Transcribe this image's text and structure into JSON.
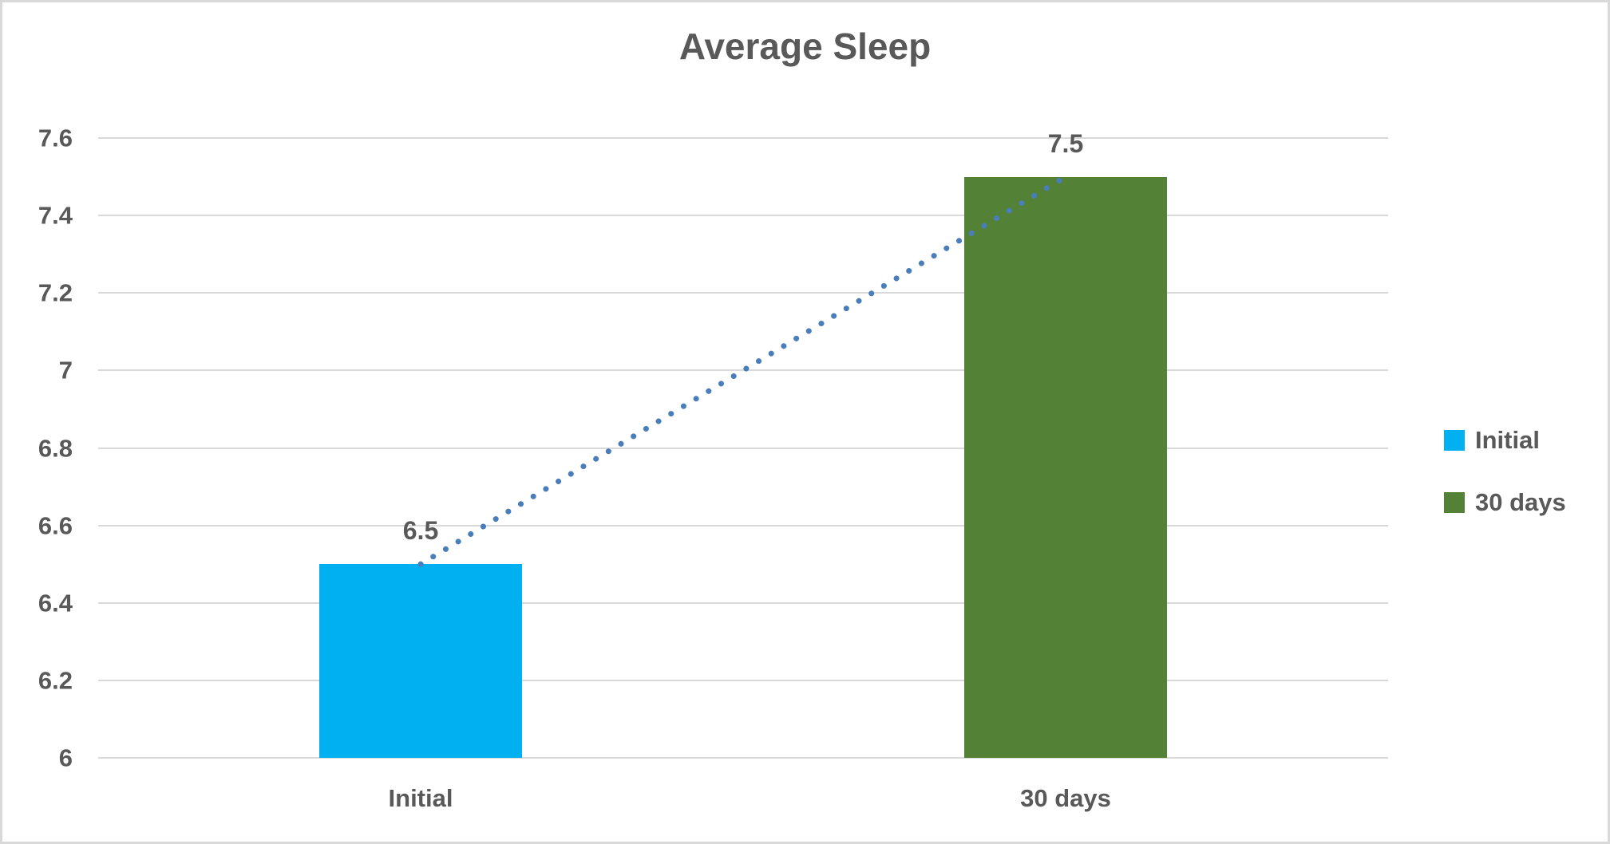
{
  "chart_data": {
    "type": "bar",
    "title": "Average Sleep",
    "categories": [
      "Initial",
      "30 days"
    ],
    "series": [
      {
        "name": "Initial",
        "value": 6.5,
        "color": "#00B0F0"
      },
      {
        "name": "30 days",
        "value": 7.5,
        "color": "#538135"
      }
    ],
    "data_labels": [
      "6.5",
      "7.5"
    ],
    "xlabel": "",
    "ylabel": "",
    "ylim": [
      6,
      7.6
    ],
    "ytick_labels": [
      "6",
      "6.2",
      "6.4",
      "6.6",
      "6.8",
      "7",
      "7.2",
      "7.4",
      "7.6"
    ],
    "grid": "horizontal",
    "legend_position": "right",
    "legend": [
      {
        "label": "Initial",
        "color": "#00B0F0"
      },
      {
        "label": "30 days",
        "color": "#538135"
      }
    ],
    "trendline": {
      "style": "dotted",
      "color": "#4A7EBB",
      "connects": [
        "Initial",
        "30 days"
      ],
      "values": [
        6.5,
        7.5
      ]
    }
  },
  "colors": {
    "text": "#595959",
    "gridline": "#D9D9D9",
    "border": "#D9D9D9",
    "background": "#FFFFFF"
  }
}
